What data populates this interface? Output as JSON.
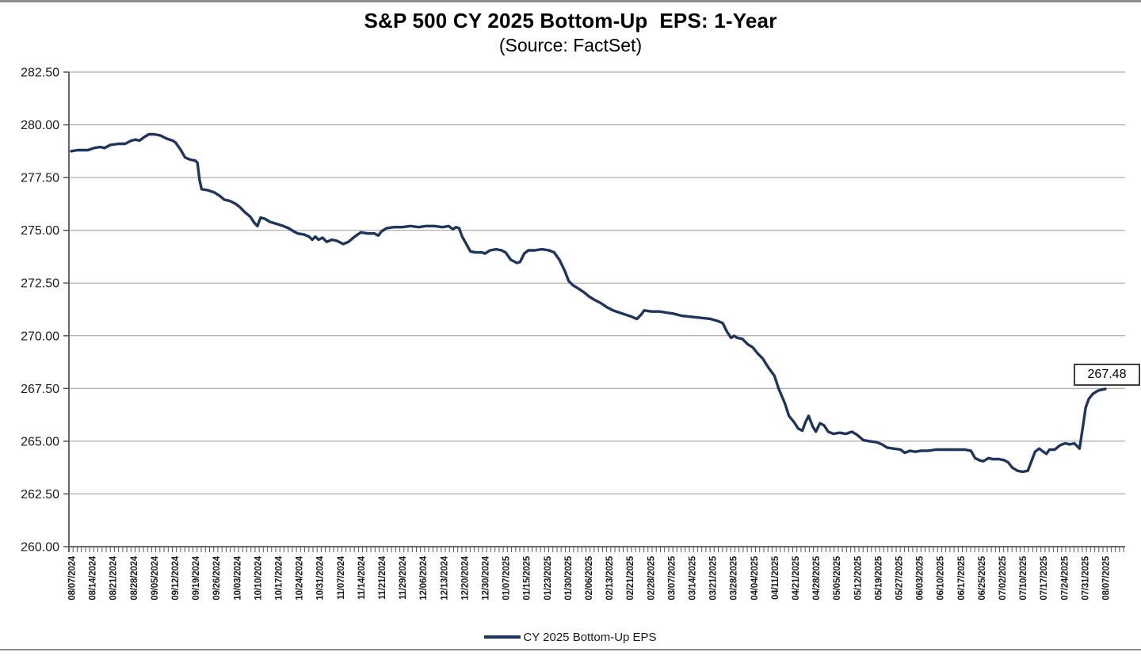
{
  "colors": {
    "line": "#1e355e",
    "grid": "#9a9a9a",
    "axis": "#555555",
    "tick": "#555555",
    "label_text": "#1a1a1a",
    "border_bar": "#8c8c8c",
    "annotation_border": "#3f3f3f"
  },
  "chart_data": {
    "type": "line",
    "title": "S&P 500 CY 2025 Bottom-Up  EPS: 1-Year",
    "subtitle": "(Source: FactSet)",
    "xlabel": "",
    "ylabel": "",
    "ylim": [
      260.0,
      282.5
    ],
    "ytick_step": 2.5,
    "yticks": [
      282.5,
      280.0,
      277.5,
      275.0,
      272.5,
      270.0,
      267.5,
      265.0,
      262.5,
      260.0
    ],
    "grid": true,
    "minor_x_ticks": "daily",
    "legend": {
      "position": "bottom",
      "label": "CY 2025 Bottom-Up EPS"
    },
    "end_label": "267.48",
    "last_value": 267.48,
    "x_tick_labels": [
      "08/07/2024",
      "08/14/2024",
      "08/21/2024",
      "08/28/2024",
      "09/05/2024",
      "09/12/2024",
      "09/19/2024",
      "09/26/2024",
      "10/03/2024",
      "10/10/2024",
      "10/17/2024",
      "10/24/2024",
      "10/31/2024",
      "11/07/2024",
      "11/14/2024",
      "11/21/2024",
      "11/29/2024",
      "12/06/2024",
      "12/13/2024",
      "12/20/2024",
      "12/30/2024",
      "01/07/2025",
      "01/15/2025",
      "01/23/2025",
      "01/30/2025",
      "02/06/2025",
      "02/13/2025",
      "02/21/2025",
      "02/28/2025",
      "03/07/2025",
      "03/14/2025",
      "03/21/2025",
      "03/28/2025",
      "04/04/2025",
      "04/11/2025",
      "04/21/2025",
      "04/28/2025",
      "05/05/2025",
      "05/12/2025",
      "05/19/2025",
      "05/27/2025",
      "06/03/2025",
      "06/10/2025",
      "06/17/2025",
      "06/25/2025",
      "07/02/2025",
      "07/10/2025",
      "07/17/2025",
      "07/24/2025",
      "07/31/2025",
      "08/07/2025"
    ],
    "series": [
      {
        "name": "CY 2025 Bottom-Up EPS",
        "x_unit": "weeks from 08/07/2024 (index into x_tick_labels)",
        "points": [
          [
            0,
            278.75
          ],
          [
            0.3,
            278.8
          ],
          [
            0.8,
            278.8
          ],
          [
            1.1,
            278.9
          ],
          [
            1.4,
            278.95
          ],
          [
            1.6,
            278.9
          ],
          [
            1.9,
            279.05
          ],
          [
            2.3,
            279.1
          ],
          [
            2.6,
            279.1
          ],
          [
            2.9,
            279.25
          ],
          [
            3.1,
            279.3
          ],
          [
            3.3,
            279.25
          ],
          [
            3.5,
            279.4
          ],
          [
            3.75,
            279.55
          ],
          [
            4.0,
            279.55
          ],
          [
            4.3,
            279.5
          ],
          [
            4.6,
            279.35
          ],
          [
            4.9,
            279.25
          ],
          [
            5.05,
            279.15
          ],
          [
            5.3,
            278.8
          ],
          [
            5.5,
            278.45
          ],
          [
            5.75,
            278.35
          ],
          [
            6.0,
            278.3
          ],
          [
            6.1,
            278.2
          ],
          [
            6.2,
            277.4
          ],
          [
            6.3,
            276.95
          ],
          [
            6.6,
            276.9
          ],
          [
            6.9,
            276.8
          ],
          [
            7.15,
            276.65
          ],
          [
            7.4,
            276.45
          ],
          [
            7.65,
            276.4
          ],
          [
            7.95,
            276.25
          ],
          [
            8.15,
            276.1
          ],
          [
            8.4,
            275.85
          ],
          [
            8.65,
            275.65
          ],
          [
            8.85,
            275.35
          ],
          [
            9.0,
            275.2
          ],
          [
            9.15,
            275.6
          ],
          [
            9.35,
            275.55
          ],
          [
            9.6,
            275.4
          ],
          [
            9.95,
            275.3
          ],
          [
            10.25,
            275.2
          ],
          [
            10.5,
            275.1
          ],
          [
            10.75,
            274.95
          ],
          [
            10.95,
            274.85
          ],
          [
            11.25,
            274.8
          ],
          [
            11.5,
            274.7
          ],
          [
            11.65,
            274.55
          ],
          [
            11.8,
            274.7
          ],
          [
            11.95,
            274.55
          ],
          [
            12.15,
            274.65
          ],
          [
            12.35,
            274.45
          ],
          [
            12.6,
            274.55
          ],
          [
            12.85,
            274.5
          ],
          [
            13.15,
            274.35
          ],
          [
            13.4,
            274.45
          ],
          [
            13.7,
            274.7
          ],
          [
            14.0,
            274.9
          ],
          [
            14.35,
            274.85
          ],
          [
            14.65,
            274.85
          ],
          [
            14.85,
            274.75
          ],
          [
            15.0,
            274.95
          ],
          [
            15.25,
            275.1
          ],
          [
            15.6,
            275.15
          ],
          [
            16.0,
            275.15
          ],
          [
            16.4,
            275.2
          ],
          [
            16.8,
            275.15
          ],
          [
            17.15,
            275.2
          ],
          [
            17.55,
            275.2
          ],
          [
            17.95,
            275.15
          ],
          [
            18.25,
            275.2
          ],
          [
            18.45,
            275.05
          ],
          [
            18.6,
            275.15
          ],
          [
            18.75,
            275.1
          ],
          [
            18.9,
            274.7
          ],
          [
            19.1,
            274.35
          ],
          [
            19.3,
            274.0
          ],
          [
            19.55,
            273.95
          ],
          [
            19.85,
            273.95
          ],
          [
            20.0,
            273.9
          ],
          [
            20.25,
            274.05
          ],
          [
            20.55,
            274.1
          ],
          [
            20.8,
            274.05
          ],
          [
            21.0,
            273.95
          ],
          [
            21.25,
            273.6
          ],
          [
            21.55,
            273.45
          ],
          [
            21.7,
            273.5
          ],
          [
            21.9,
            273.9
          ],
          [
            22.1,
            274.05
          ],
          [
            22.4,
            274.05
          ],
          [
            22.75,
            274.1
          ],
          [
            23.1,
            274.05
          ],
          [
            23.35,
            273.95
          ],
          [
            23.6,
            273.6
          ],
          [
            23.85,
            273.1
          ],
          [
            24.05,
            272.6
          ],
          [
            24.25,
            272.4
          ],
          [
            24.5,
            272.25
          ],
          [
            24.8,
            272.05
          ],
          [
            25.05,
            271.85
          ],
          [
            25.3,
            271.7
          ],
          [
            25.6,
            271.55
          ],
          [
            25.9,
            271.35
          ],
          [
            26.2,
            271.2
          ],
          [
            26.5,
            271.1
          ],
          [
            26.8,
            271.0
          ],
          [
            27.1,
            270.9
          ],
          [
            27.35,
            270.8
          ],
          [
            27.55,
            271.0
          ],
          [
            27.7,
            271.2
          ],
          [
            28.05,
            271.15
          ],
          [
            28.45,
            271.15
          ],
          [
            28.75,
            271.1
          ],
          [
            29.1,
            271.05
          ],
          [
            29.5,
            270.95
          ],
          [
            29.95,
            270.9
          ],
          [
            30.4,
            270.85
          ],
          [
            30.9,
            270.8
          ],
          [
            31.25,
            270.7
          ],
          [
            31.5,
            270.6
          ],
          [
            31.7,
            270.2
          ],
          [
            31.9,
            269.9
          ],
          [
            32.05,
            270.0
          ],
          [
            32.2,
            269.9
          ],
          [
            32.45,
            269.85
          ],
          [
            32.7,
            269.6
          ],
          [
            32.95,
            269.45
          ],
          [
            33.2,
            269.15
          ],
          [
            33.45,
            268.9
          ],
          [
            33.7,
            268.5
          ],
          [
            34.0,
            268.1
          ],
          [
            34.2,
            267.5
          ],
          [
            34.5,
            266.8
          ],
          [
            34.7,
            266.2
          ],
          [
            34.95,
            265.9
          ],
          [
            35.15,
            265.6
          ],
          [
            35.35,
            265.5
          ],
          [
            35.5,
            265.9
          ],
          [
            35.65,
            266.2
          ],
          [
            35.85,
            265.7
          ],
          [
            36.0,
            265.45
          ],
          [
            36.2,
            265.85
          ],
          [
            36.4,
            265.75
          ],
          [
            36.6,
            265.45
          ],
          [
            36.85,
            265.35
          ],
          [
            37.15,
            265.4
          ],
          [
            37.45,
            265.35
          ],
          [
            37.75,
            265.45
          ],
          [
            38.0,
            265.3
          ],
          [
            38.3,
            265.05
          ],
          [
            38.6,
            265.0
          ],
          [
            38.95,
            264.95
          ],
          [
            39.2,
            264.85
          ],
          [
            39.45,
            264.7
          ],
          [
            39.75,
            264.65
          ],
          [
            40.1,
            264.6
          ],
          [
            40.3,
            264.45
          ],
          [
            40.55,
            264.55
          ],
          [
            40.8,
            264.5
          ],
          [
            41.1,
            264.55
          ],
          [
            41.45,
            264.55
          ],
          [
            41.8,
            264.6
          ],
          [
            42.15,
            264.6
          ],
          [
            42.5,
            264.6
          ],
          [
            42.85,
            264.6
          ],
          [
            43.2,
            264.6
          ],
          [
            43.5,
            264.55
          ],
          [
            43.7,
            264.2
          ],
          [
            43.9,
            264.1
          ],
          [
            44.1,
            264.05
          ],
          [
            44.35,
            264.2
          ],
          [
            44.55,
            264.15
          ],
          [
            44.85,
            264.15
          ],
          [
            45.1,
            264.1
          ],
          [
            45.3,
            264.0
          ],
          [
            45.5,
            263.75
          ],
          [
            45.75,
            263.6
          ],
          [
            46.0,
            263.55
          ],
          [
            46.25,
            263.6
          ],
          [
            46.45,
            264.1
          ],
          [
            46.6,
            264.5
          ],
          [
            46.8,
            264.65
          ],
          [
            47.0,
            264.5
          ],
          [
            47.15,
            264.4
          ],
          [
            47.3,
            264.6
          ],
          [
            47.55,
            264.6
          ],
          [
            47.8,
            264.8
          ],
          [
            48.05,
            264.9
          ],
          [
            48.3,
            264.85
          ],
          [
            48.5,
            264.9
          ],
          [
            48.75,
            264.65
          ],
          [
            48.9,
            265.6
          ],
          [
            49.05,
            266.6
          ],
          [
            49.2,
            267.0
          ],
          [
            49.4,
            267.25
          ],
          [
            49.65,
            267.4
          ],
          [
            49.85,
            267.45
          ],
          [
            50.0,
            267.48
          ]
        ]
      }
    ]
  }
}
